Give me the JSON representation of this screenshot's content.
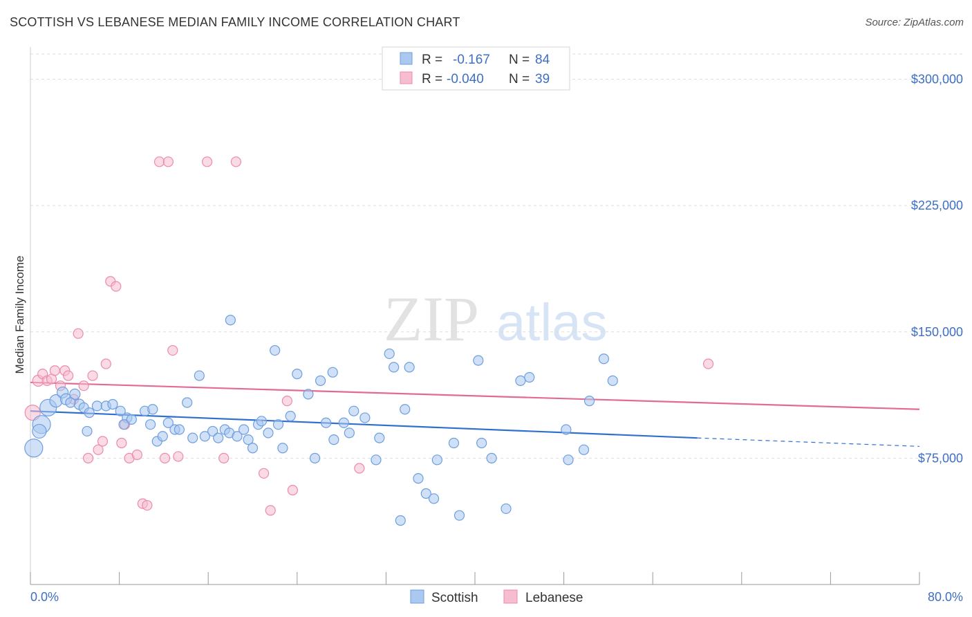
{
  "title": "SCOTTISH VS LEBANESE MEDIAN FAMILY INCOME CORRELATION CHART",
  "source": "Source: ZipAtlas.com",
  "watermark": {
    "zip": "ZIP",
    "atlas": "atlas"
  },
  "colors": {
    "scottish_fill": "#aac8f0",
    "scottish_stroke": "#6d9ee0",
    "scottish_line": "#2f6fd0",
    "lebanese_fill": "#f6bcd0",
    "lebanese_stroke": "#ec8aae",
    "lebanese_line": "#e36a96",
    "axis_text": "#3d6fc4",
    "grid": "#dddddd"
  },
  "legend": {
    "rows": [
      {
        "r_label": "R =",
        "r_value": "-0.167",
        "n_label": "N =",
        "n_value": "84"
      },
      {
        "r_label": "R =",
        "r_value": "-0.040",
        "n_label": "N =",
        "n_value": "39"
      }
    ]
  },
  "chart_data": {
    "type": "scatter",
    "title": "SCOTTISH VS LEBANESE MEDIAN FAMILY INCOME CORRELATION CHART",
    "xlabel": "",
    "ylabel": "Median Family Income",
    "xlim": [
      0,
      80
    ],
    "ylim": [
      0,
      315000
    ],
    "x_tick_labels": [
      "0.0%",
      "80.0%"
    ],
    "y_ticks": [
      75000,
      150000,
      225000,
      300000
    ],
    "y_tick_labels": [
      "$75,000",
      "$150,000",
      "$225,000",
      "$300,000"
    ],
    "grid": true,
    "legend_position": "top-center",
    "series": [
      {
        "name": "Scottish",
        "r": -0.167,
        "n": 84,
        "trend": {
          "x0": 0,
          "y0": 103000,
          "x1": 60,
          "y1": 87000,
          "dash_to_x": 80,
          "dash_to_y": 82000
        },
        "points": [
          [
            0.3,
            81000,
            24
          ],
          [
            1.0,
            95000,
            24
          ],
          [
            1.6,
            105000,
            22
          ],
          [
            0.8,
            91000,
            18
          ],
          [
            2.3,
            109000,
            16
          ],
          [
            2.9,
            114000,
            14
          ],
          [
            3.2,
            110000,
            14
          ],
          [
            4.0,
            113000,
            13
          ],
          [
            4.4,
            107000,
            13
          ],
          [
            3.6,
            108000,
            12
          ],
          [
            4.8,
            105000,
            12
          ],
          [
            5.3,
            102000,
            12
          ],
          [
            6.0,
            106000,
            12
          ],
          [
            6.8,
            106000,
            12
          ],
          [
            7.4,
            107000,
            12
          ],
          [
            8.1,
            103000,
            12
          ],
          [
            8.7,
            99000,
            12
          ],
          [
            9.1,
            98000,
            12
          ],
          [
            10.3,
            103000,
            12
          ],
          [
            10.8,
            95000,
            12
          ],
          [
            11.4,
            85000,
            12
          ],
          [
            11.9,
            88000,
            12
          ],
          [
            12.4,
            96000,
            12
          ],
          [
            13.0,
            92000,
            12
          ],
          [
            13.4,
            92000,
            12
          ],
          [
            14.1,
            108000,
            12
          ],
          [
            14.6,
            87000,
            12
          ],
          [
            15.2,
            124000,
            12
          ],
          [
            15.7,
            88000,
            12
          ],
          [
            16.4,
            91000,
            12
          ],
          [
            16.9,
            87000,
            12
          ],
          [
            17.5,
            92000,
            12
          ],
          [
            17.9,
            90000,
            12
          ],
          [
            18.0,
            157000,
            12
          ],
          [
            18.6,
            88000,
            12
          ],
          [
            19.2,
            92000,
            12
          ],
          [
            19.6,
            86000,
            12
          ],
          [
            20.0,
            81000,
            12
          ],
          [
            20.5,
            95000,
            12
          ],
          [
            20.8,
            97000,
            12
          ],
          [
            21.4,
            90000,
            12
          ],
          [
            22.0,
            139000,
            12
          ],
          [
            22.3,
            95000,
            12
          ],
          [
            22.7,
            81000,
            12
          ],
          [
            23.4,
            100000,
            12
          ],
          [
            24.0,
            125000,
            12
          ],
          [
            25.0,
            113000,
            12
          ],
          [
            25.6,
            75000,
            12
          ],
          [
            26.1,
            121000,
            12
          ],
          [
            26.6,
            96000,
            12
          ],
          [
            27.3,
            86000,
            12
          ],
          [
            27.2,
            126000,
            12
          ],
          [
            28.2,
            96000,
            12
          ],
          [
            28.7,
            90000,
            12
          ],
          [
            29.1,
            103000,
            12
          ],
          [
            30.1,
            99000,
            12
          ],
          [
            31.1,
            74000,
            12
          ],
          [
            31.4,
            87000,
            12
          ],
          [
            32.3,
            137000,
            12
          ],
          [
            32.7,
            129000,
            12
          ],
          [
            33.7,
            104000,
            12
          ],
          [
            34.1,
            129000,
            12
          ],
          [
            34.9,
            63000,
            12
          ],
          [
            35.6,
            54000,
            12
          ],
          [
            36.3,
            51000,
            12
          ],
          [
            36.6,
            74000,
            12
          ],
          [
            33.3,
            38000,
            12
          ],
          [
            38.1,
            84000,
            12
          ],
          [
            38.6,
            41000,
            12
          ],
          [
            40.3,
            133000,
            12
          ],
          [
            40.6,
            84000,
            12
          ],
          [
            41.5,
            75000,
            12
          ],
          [
            42.8,
            45000,
            12
          ],
          [
            44.1,
            121000,
            12
          ],
          [
            44.9,
            123000,
            12
          ],
          [
            48.2,
            92000,
            12
          ],
          [
            48.4,
            74000,
            12
          ],
          [
            49.8,
            80000,
            12
          ],
          [
            50.3,
            109000,
            12
          ],
          [
            51.6,
            134000,
            12
          ],
          [
            52.4,
            121000,
            12
          ],
          [
            5.1,
            91000,
            12
          ],
          [
            8.4,
            95000,
            12
          ],
          [
            11.0,
            104000,
            12
          ]
        ]
      },
      {
        "name": "Lebanese",
        "r": -0.04,
        "n": 39,
        "trend": {
          "x0": 0,
          "y0": 120000,
          "x1": 80,
          "y1": 104000
        },
        "points": [
          [
            0.2,
            102000,
            20
          ],
          [
            0.7,
            121000,
            14
          ],
          [
            1.1,
            125000,
            12
          ],
          [
            1.5,
            121000,
            12
          ],
          [
            1.9,
            122000,
            12
          ],
          [
            2.2,
            127000,
            12
          ],
          [
            2.7,
            118000,
            12
          ],
          [
            3.1,
            127000,
            12
          ],
          [
            3.4,
            124000,
            12
          ],
          [
            3.9,
            110000,
            12
          ],
          [
            4.3,
            149000,
            12
          ],
          [
            4.8,
            118000,
            12
          ],
          [
            5.2,
            75000,
            12
          ],
          [
            5.6,
            124000,
            12
          ],
          [
            6.1,
            80000,
            12
          ],
          [
            6.5,
            85000,
            12
          ],
          [
            6.8,
            131000,
            12
          ],
          [
            7.2,
            180000,
            12
          ],
          [
            7.7,
            177000,
            12
          ],
          [
            8.2,
            84000,
            12
          ],
          [
            8.5,
            95000,
            12
          ],
          [
            8.9,
            75000,
            12
          ],
          [
            9.6,
            77000,
            12
          ],
          [
            10.1,
            48000,
            12
          ],
          [
            10.5,
            47000,
            12
          ],
          [
            11.6,
            251000,
            12
          ],
          [
            12.1,
            75000,
            12
          ],
          [
            12.4,
            251000,
            12
          ],
          [
            12.8,
            139000,
            12
          ],
          [
            13.3,
            76000,
            12
          ],
          [
            15.9,
            251000,
            12
          ],
          [
            17.4,
            75000,
            12
          ],
          [
            18.5,
            251000,
            12
          ],
          [
            21.0,
            66000,
            12
          ],
          [
            21.6,
            44000,
            12
          ],
          [
            23.1,
            109000,
            12
          ],
          [
            23.6,
            56000,
            12
          ],
          [
            29.6,
            69000,
            12
          ],
          [
            61.0,
            131000,
            12
          ]
        ]
      }
    ]
  }
}
